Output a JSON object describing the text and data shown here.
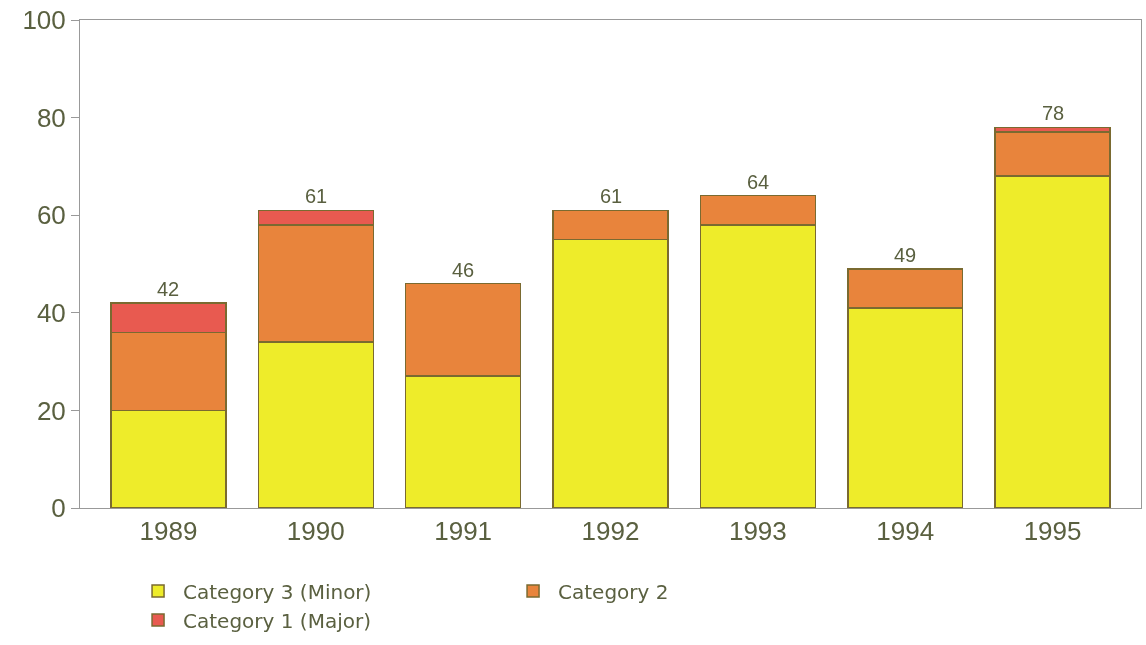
{
  "chart_data": {
    "type": "bar",
    "stacked": true,
    "categories": [
      "1989",
      "1990",
      "1991",
      "1992",
      "1993",
      "1994",
      "1995"
    ],
    "series": [
      {
        "name": "Category 3 (Minor)",
        "color": "#eeec2a",
        "values": [
          20,
          34,
          27,
          55,
          58,
          41,
          68
        ]
      },
      {
        "name": "Category 2",
        "color": "#e8843c",
        "values": [
          16,
          24,
          19,
          6,
          6,
          8,
          9
        ]
      },
      {
        "name": "Category 1 (Major)",
        "color": "#e85a50",
        "values": [
          6,
          3,
          null,
          null,
          null,
          null,
          1
        ]
      }
    ],
    "totals": [
      "42",
      "61",
      "46",
      "61",
      "64",
      "49",
      "78"
    ],
    "ylim": [
      0,
      100
    ],
    "yticks": [
      0,
      20,
      40,
      60,
      80,
      100
    ],
    "legend": "bottom"
  }
}
